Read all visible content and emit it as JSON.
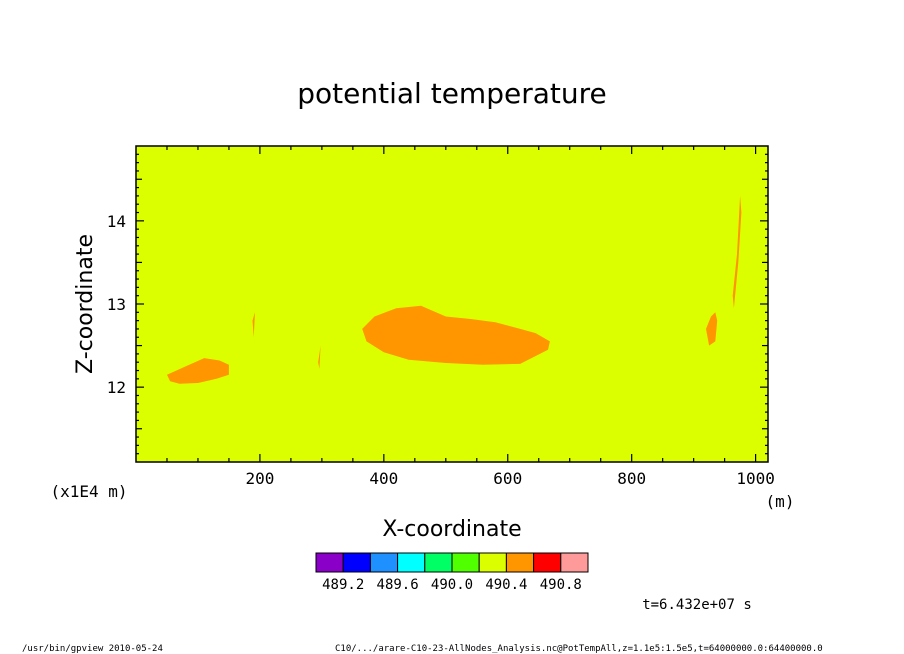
{
  "chart_data": {
    "type": "heatmap",
    "title": "potential temperature",
    "xlabel": "X-coordinate",
    "ylabel": "Z-coordinate",
    "x_unit": "(m)",
    "y_scale_label": "(x1E4 m)",
    "xlim": [
      0,
      1020
    ],
    "ylim": [
      11.1,
      14.9
    ],
    "xticks": [
      200,
      400,
      600,
      800,
      1000
    ],
    "xtick_labels": [
      "200",
      "400",
      "600",
      "800",
      "1000"
    ],
    "yticks": [
      12,
      13,
      14
    ],
    "ytick_labels": [
      "12",
      "13",
      "14"
    ],
    "grid": false,
    "background_color": "#dcff00",
    "colorbar": {
      "colors": [
        "#8a00c8",
        "#0000ff",
        "#1e90ff",
        "#00ffff",
        "#00ff64",
        "#50ff00",
        "#dcff00",
        "#ff9600",
        "#ff0000",
        "#ff9a9a"
      ],
      "labels": [
        "489.2",
        "489.6",
        "490.0",
        "490.4",
        "490.8"
      ]
    },
    "regions": [
      {
        "label": "490.4 to 490.6",
        "color": "#ff9600",
        "x": [
          365,
          385,
          420,
          460,
          500,
          540,
          580,
          620,
          645,
          668,
          665,
          620,
          560,
          500,
          440,
          400,
          372,
          365
        ],
        "y": [
          12.7,
          12.85,
          12.95,
          12.98,
          12.85,
          12.82,
          12.78,
          12.7,
          12.65,
          12.55,
          12.45,
          12.28,
          12.27,
          12.29,
          12.33,
          12.42,
          12.55,
          12.7
        ]
      },
      {
        "label": "490.4 to 490.6",
        "color": "#ff9600",
        "x": [
          50,
          80,
          110,
          135,
          150,
          150,
          130,
          100,
          70,
          55,
          50
        ],
        "y": [
          12.15,
          12.25,
          12.35,
          12.32,
          12.27,
          12.15,
          12.1,
          12.05,
          12.04,
          12.07,
          12.15
        ]
      },
      {
        "label": "490.4 to 490.6",
        "color": "#ff9600",
        "x": [
          920,
          928,
          935,
          938,
          935,
          925,
          920
        ],
        "y": [
          12.7,
          12.85,
          12.9,
          12.8,
          12.55,
          12.5,
          12.7
        ]
      },
      {
        "label": "490.4 to 490.6",
        "color": "#ff9600",
        "x": [
          963,
          970,
          975,
          977,
          972,
          965,
          963
        ],
        "y": [
          13.1,
          13.6,
          14.3,
          14.1,
          13.5,
          12.95,
          13.1
        ]
      },
      {
        "label": "490.4 to 490.6",
        "color": "#ff9600",
        "x": [
          294,
          298,
          296,
          294
        ],
        "y": [
          12.3,
          12.5,
          12.22,
          12.3
        ]
      },
      {
        "label": "490.4 to 490.6",
        "color": "#ff9600",
        "x": [
          188,
          192,
          190,
          188
        ],
        "y": [
          12.8,
          12.9,
          12.6,
          12.8
        ]
      }
    ],
    "annotations": {
      "time": "t=6.432e+07 s",
      "footer_left": "/usr/bin/gpview   2010-05-24",
      "footer_right": "C10/.../arare-C10-23-AllNodes_Analysis.nc@PotTempAll,z=1.1e5:1.5e5,t=64000000.0:64400000.0"
    }
  }
}
